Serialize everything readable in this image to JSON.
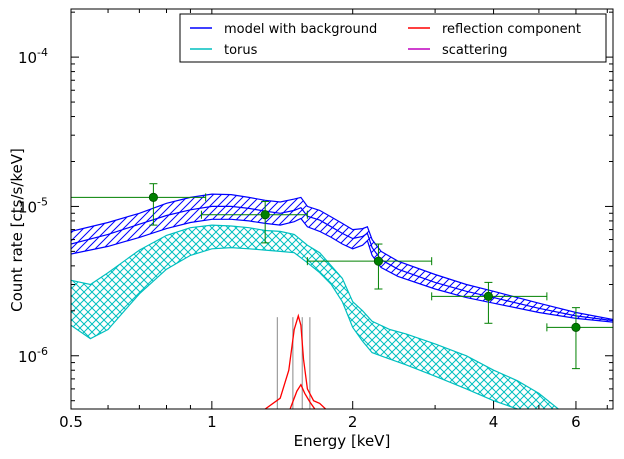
{
  "chart_data": {
    "type": "line",
    "title": "",
    "xlabel": "Energy [keV]",
    "ylabel": "Count rate [cts/s/keV]",
    "xscale": "log",
    "yscale": "log",
    "xlim": [
      0.5,
      7.2
    ],
    "ylim": [
      4.4e-07,
      0.00021
    ],
    "x_ticks": [
      {
        "value": 0.5,
        "label": "0.5"
      },
      {
        "value": 1,
        "label": "1"
      },
      {
        "value": 2,
        "label": "2"
      },
      {
        "value": 4,
        "label": "4"
      },
      {
        "value": 6,
        "label": "6"
      }
    ],
    "y_ticks": [
      {
        "value": 1e-06,
        "base": "10",
        "exp": "-6"
      },
      {
        "value": 1e-05,
        "base": "10",
        "exp": "-5"
      },
      {
        "value": 0.0001,
        "base": "10",
        "exp": "-4"
      }
    ],
    "legend": {
      "placement": "top-right",
      "columns": 2,
      "entries": [
        {
          "label": "model with background",
          "color": "#0000ff"
        },
        {
          "label": "torus",
          "color": "#00bfbf"
        },
        {
          "label": "reflection component",
          "color": "#ff0000"
        },
        {
          "label": "scattering",
          "color": "#bf00bf"
        }
      ]
    },
    "bands": [
      {
        "name": "model with background",
        "color": "#0000ff",
        "hatch": "diagonal",
        "x": [
          0.5,
          0.6,
          0.7,
          0.8,
          0.9,
          1.0,
          1.1,
          1.2,
          1.3,
          1.4,
          1.5,
          1.55,
          1.6,
          1.7,
          1.8,
          1.9,
          2.0,
          2.1,
          2.15,
          2.2,
          2.3,
          2.5,
          3.0,
          3.5,
          4.0,
          5.0,
          6.0,
          7.2
        ],
        "upper": [
          6.8e-06,
          7.8e-06,
          9e-06,
          1.05e-05,
          1.15e-05,
          1.21e-05,
          1.2e-05,
          1.15e-05,
          1.1e-05,
          1.07e-05,
          1.12e-05,
          1.15e-05,
          1e-05,
          9.4e-06,
          8.5e-06,
          7.7e-06,
          7e-06,
          7.1e-06,
          7.3e-06,
          6e-06,
          5e-06,
          4.3e-06,
          3.5e-06,
          3e-06,
          2.7e-06,
          2.25e-06,
          1.95e-06,
          1.75e-06
        ],
        "mid": [
          5.6e-06,
          6.5e-06,
          7.6e-06,
          8.7e-06,
          9.5e-06,
          1e-05,
          1e-05,
          9.7e-06,
          9.3e-06,
          9e-06,
          9.4e-06,
          9.8e-06,
          8.6e-06,
          8.1e-06,
          7.3e-06,
          6.6e-06,
          6.1e-06,
          6.3e-06,
          6.6e-06,
          5.3e-06,
          4.4e-06,
          3.8e-06,
          3.1e-06,
          2.7e-06,
          2.45e-06,
          2.08e-06,
          1.85e-06,
          1.72e-06
        ],
        "lower": [
          4.8e-06,
          5.4e-06,
          6.2e-06,
          7.1e-06,
          7.8e-06,
          8.2e-06,
          8.2e-06,
          8e-06,
          7.7e-06,
          7.5e-06,
          7.9e-06,
          8.3e-06,
          7.3e-06,
          6.8e-06,
          6.2e-06,
          5.6e-06,
          5.2e-06,
          5.5e-06,
          5.9e-06,
          4.7e-06,
          3.9e-06,
          3.4e-06,
          2.8e-06,
          2.45e-06,
          2.25e-06,
          1.95e-06,
          1.78e-06,
          1.68e-06
        ]
      },
      {
        "name": "torus",
        "color": "#00bfbf",
        "hatch": "cross",
        "x": [
          0.5,
          0.55,
          0.6,
          0.7,
          0.8,
          0.9,
          1.0,
          1.1,
          1.2,
          1.3,
          1.4,
          1.5,
          1.6,
          1.7,
          1.8,
          1.9,
          2.0,
          2.1,
          2.2,
          2.4,
          2.6,
          3.0,
          3.5,
          4.0,
          4.5,
          5.0,
          5.5
        ],
        "upper": [
          3.2e-06,
          3e-06,
          3.6e-06,
          5.1e-06,
          6.4e-06,
          7.2e-06,
          7.5e-06,
          7.4e-06,
          7.2e-06,
          6.9e-06,
          6.8e-06,
          6.5e-06,
          5.5e-06,
          4.9e-06,
          4e-06,
          3.3e-06,
          2.3e-06,
          2e-06,
          1.7e-06,
          1.5e-06,
          1.4e-06,
          1.2e-06,
          1e-06,
          8e-07,
          6.8e-07,
          5.6e-07,
          4.4e-07
        ],
        "lower": [
          1.6e-06,
          1.3e-06,
          1.5e-06,
          2.6e-06,
          3.8e-06,
          4.7e-06,
          5.2e-06,
          5.3e-06,
          5.2e-06,
          5.1e-06,
          5e-06,
          4.9e-06,
          4.2e-06,
          3.6e-06,
          3e-06,
          2.3e-06,
          1.55e-06,
          1.25e-06,
          1.05e-06,
          9.5e-07,
          8.7e-07,
          7.3e-07,
          6e-07,
          5e-07,
          4.4e-07,
          4e-07,
          3.8e-07
        ]
      }
    ],
    "lines": [
      {
        "name": "reflection component",
        "color": "#ff0000",
        "x": [
          1.3,
          1.4,
          1.46,
          1.5,
          1.53,
          1.55,
          1.57,
          1.6,
          1.65,
          1.7,
          1.75
        ],
        "y": [
          4.4e-07,
          5.2e-07,
          8e-07,
          1.5e-06,
          1.85e-06,
          1.6e-06,
          9.5e-07,
          6e-07,
          5e-07,
          4.8e-07,
          4.4e-07
        ]
      },
      {
        "name": "reflection component",
        "color": "#ff0000",
        "x": [
          1.47,
          1.52,
          1.55,
          1.58,
          1.62,
          1.66
        ],
        "y": [
          4.4e-07,
          5.8e-07,
          6.4e-07,
          5.6e-07,
          4.9e-07,
          4.4e-07
        ]
      },
      {
        "name": "scattering",
        "color": "#bf00bf",
        "x": [],
        "y": []
      }
    ],
    "vlines": [
      {
        "x": 1.38,
        "color": "#888888"
      },
      {
        "x": 1.49,
        "color": "#888888"
      },
      {
        "x": 1.56,
        "color": "#888888"
      },
      {
        "x": 1.62,
        "color": "#888888"
      }
    ],
    "points": [
      {
        "x": 0.75,
        "xlo": 0.5,
        "xhi": 0.97,
        "y": 1.15e-05,
        "ylo": 7.5e-06,
        "yhi": 1.42e-05
      },
      {
        "x": 1.3,
        "xlo": 0.95,
        "xhi": 1.6,
        "y": 8.8e-06,
        "ylo": 5.7e-06,
        "yhi": 1.08e-05
      },
      {
        "x": 2.27,
        "xlo": 1.6,
        "xhi": 2.95,
        "y": 4.3e-06,
        "ylo": 2.8e-06,
        "yhi": 5.6e-06
      },
      {
        "x": 3.9,
        "xlo": 2.95,
        "xhi": 5.2,
        "y": 2.5e-06,
        "ylo": 1.65e-06,
        "yhi": 3.1e-06
      },
      {
        "x": 6.0,
        "xlo": 5.2,
        "xhi": 7.2,
        "y": 1.55e-06,
        "ylo": 8.2e-07,
        "yhi": 2.1e-06
      }
    ],
    "point_color": "#008000",
    "point_edge": "#004d00"
  }
}
